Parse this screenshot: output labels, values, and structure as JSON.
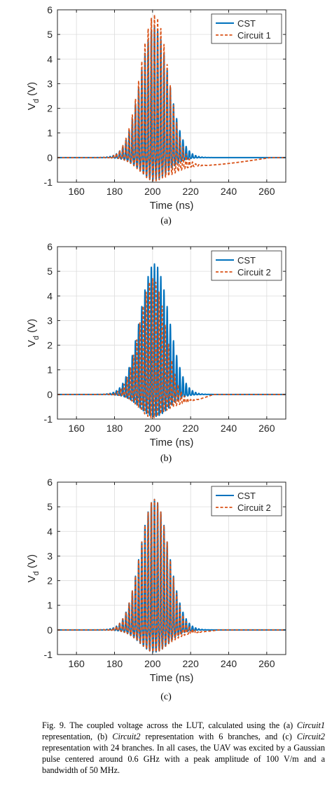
{
  "chart_data": [
    {
      "type": "line",
      "panel_label": "(a)",
      "xlabel": "Time (ns)",
      "ylabel_main": "V",
      "ylabel_sub": "d",
      "ylabel_unit": "(V)",
      "xlim": [
        150,
        270
      ],
      "ylim": [
        -1,
        6
      ],
      "xticks": [
        160,
        180,
        200,
        220,
        240,
        260
      ],
      "yticks": [
        -1,
        0,
        1,
        2,
        3,
        4,
        5,
        6
      ],
      "grid": true,
      "legend_position": "top-right",
      "series": [
        {
          "name": "CST",
          "color": "#0072BD",
          "style": "solid",
          "center_ns": 201,
          "sigma_ns": 7.5,
          "peak_pos": 5.3,
          "peak_neg": -0.9,
          "frequency_ghz": 0.6
        },
        {
          "name": "Circuit 1",
          "color": "#D95319",
          "style": "dashed",
          "center_ns": 201,
          "sigma_ns": 7.5,
          "peak_pos": 5.8,
          "peak_neg": -0.95,
          "frequency_ghz": 0.6,
          "tail": {
            "start_ns": 205,
            "min_value": -0.35,
            "min_at_ns": 216,
            "end_ns": 262
          }
        }
      ]
    },
    {
      "type": "line",
      "panel_label": "(b)",
      "xlabel": "Time (ns)",
      "ylabel_main": "V",
      "ylabel_sub": "d",
      "ylabel_unit": "(V)",
      "xlim": [
        150,
        270
      ],
      "ylim": [
        -1,
        6
      ],
      "xticks": [
        160,
        180,
        200,
        220,
        240,
        260
      ],
      "yticks": [
        -1,
        0,
        1,
        2,
        3,
        4,
        5,
        6
      ],
      "grid": true,
      "legend_position": "top-right",
      "series": [
        {
          "name": "CST",
          "color": "#0072BD",
          "style": "solid",
          "center_ns": 201,
          "sigma_ns": 7.5,
          "peak_pos": 5.3,
          "peak_neg": -0.9,
          "frequency_ghz": 0.6
        },
        {
          "name": "Circuit 2",
          "color": "#D95319",
          "style": "dashed",
          "center_ns": 200,
          "sigma_ns": 6.8,
          "peak_pos": 4.7,
          "peak_neg": -0.95,
          "frequency_ghz": 0.6,
          "tail": {
            "start_ns": 205,
            "min_value": -0.3,
            "min_at_ns": 215,
            "end_ns": 232
          }
        }
      ]
    },
    {
      "type": "line",
      "panel_label": "(c)",
      "xlabel": "Time (ns)",
      "ylabel_main": "V",
      "ylabel_sub": "d",
      "ylabel_unit": "(V)",
      "xlim": [
        150,
        270
      ],
      "ylim": [
        -1,
        6
      ],
      "xticks": [
        160,
        180,
        200,
        220,
        240,
        260
      ],
      "yticks": [
        -1,
        0,
        1,
        2,
        3,
        4,
        5,
        6
      ],
      "grid": true,
      "legend_position": "top-right",
      "series": [
        {
          "name": "CST",
          "color": "#0072BD",
          "style": "solid",
          "center_ns": 201,
          "sigma_ns": 7.5,
          "peak_pos": 5.3,
          "peak_neg": -0.9,
          "frequency_ghz": 0.6
        },
        {
          "name": "Circuit 2",
          "color": "#D95319",
          "style": "dashed",
          "center_ns": 201,
          "sigma_ns": 7.5,
          "peak_pos": 5.3,
          "peak_neg": -0.9,
          "frequency_ghz": 0.6,
          "tail": {
            "start_ns": 208,
            "min_value": -0.12,
            "min_at_ns": 216,
            "end_ns": 235
          }
        }
      ]
    }
  ],
  "caption": {
    "part1": "Fig. 9.  The coupled voltage across the LUT, calculated using the (a) ",
    "em1": "Circuit1",
    "part2": " representation, (b) ",
    "em2": "Circuit2",
    "part3": " representation with 6 branches, and (c) ",
    "em3": "Circuit2",
    "part4": " representation with 24 branches. In all cases, the UAV was excited by a Gaussian pulse centered around 0.6 GHz with a peak amplitude of 100 V/m and a bandwidth of 50 MHz."
  }
}
